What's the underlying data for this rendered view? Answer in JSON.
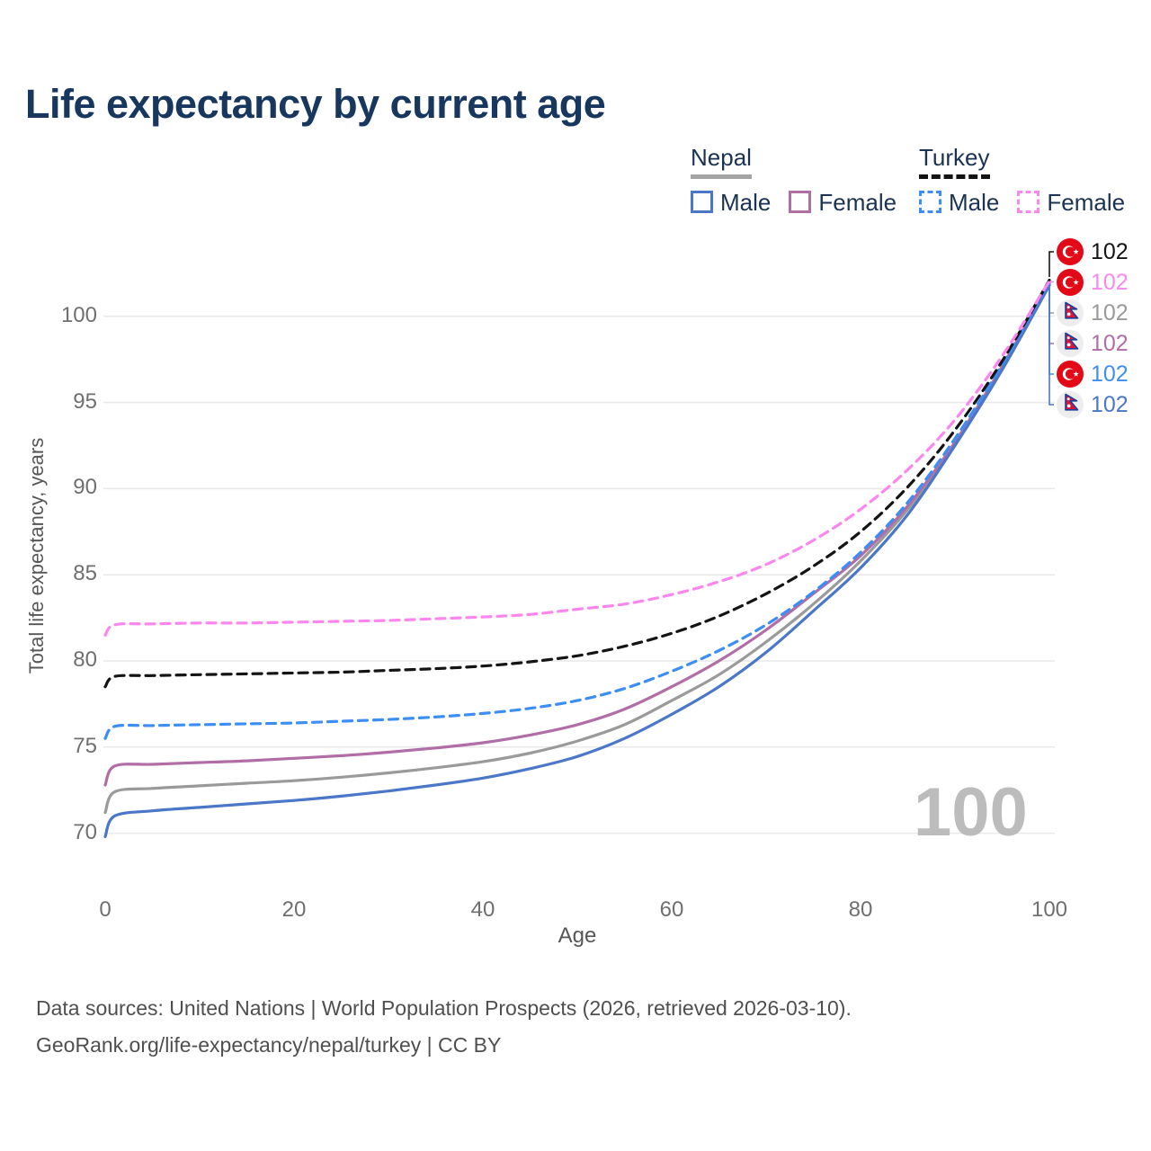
{
  "header": {
    "title": "Life expectancy by current age"
  },
  "legend": {
    "groups": [
      {
        "label": "Nepal",
        "underline_style": "solid",
        "underline_color": "#a3a3a3",
        "items": [
          {
            "label": "Male",
            "color": "#4a77c8",
            "dashed": false
          },
          {
            "label": "Female",
            "color": "#b16da6",
            "dashed": false
          }
        ]
      },
      {
        "label": "Turkey",
        "underline_style": "dashed",
        "underline_color": "#141414",
        "items": [
          {
            "label": "Male",
            "color": "#3c8ef5",
            "dashed": true
          },
          {
            "label": "Female",
            "color": "#fb87ee",
            "dashed": true
          }
        ]
      }
    ]
  },
  "chart_data": {
    "type": "line",
    "title": "Life expectancy by current age",
    "xlabel": "Age",
    "ylabel": "Total life expectancy, years",
    "x_ticks": [
      0,
      20,
      40,
      60,
      80,
      100
    ],
    "y_ticks": [
      70,
      75,
      80,
      85,
      90,
      95,
      100
    ],
    "xlim": [
      0,
      100
    ],
    "ylim": [
      69,
      103
    ],
    "grid": "horizontal",
    "legend_position": "top-right",
    "watermark": "100",
    "x": [
      0,
      1,
      5,
      10,
      15,
      20,
      25,
      30,
      35,
      40,
      45,
      50,
      55,
      60,
      65,
      70,
      75,
      80,
      85,
      90,
      95,
      100
    ],
    "series": [
      {
        "name": "Nepal — Both sexes",
        "country": "Nepal",
        "sex": "Both",
        "style": "solid",
        "color": "#9a9a9a",
        "values": [
          71.2,
          72.4,
          72.6,
          72.75,
          72.9,
          73.05,
          73.25,
          73.5,
          73.8,
          74.15,
          74.65,
          75.35,
          76.3,
          77.7,
          79.2,
          81.1,
          83.3,
          85.8,
          88.8,
          92.6,
          97.0,
          101.85
        ]
      },
      {
        "name": "Nepal — Female",
        "country": "Nepal",
        "sex": "Female",
        "style": "solid",
        "color": "#b16da6",
        "values": [
          72.8,
          73.9,
          74.0,
          74.1,
          74.2,
          74.35,
          74.5,
          74.7,
          74.95,
          75.25,
          75.7,
          76.3,
          77.2,
          78.5,
          80.0,
          81.8,
          83.9,
          86.1,
          89.0,
          92.7,
          97.1,
          101.9
        ]
      },
      {
        "name": "Nepal — Male",
        "country": "Nepal",
        "sex": "Male",
        "style": "solid",
        "color": "#4a77c8",
        "values": [
          69.8,
          71.0,
          71.3,
          71.5,
          71.7,
          71.9,
          72.15,
          72.45,
          72.8,
          73.2,
          73.75,
          74.45,
          75.5,
          76.9,
          78.5,
          80.5,
          82.9,
          85.4,
          88.5,
          92.5,
          96.9,
          101.8
        ]
      },
      {
        "name": "Turkey — Male",
        "country": "Turkey",
        "sex": "Male",
        "style": "dashed",
        "color": "#3c8ef5",
        "values": [
          75.5,
          76.2,
          76.25,
          76.3,
          76.35,
          76.4,
          76.5,
          76.6,
          76.75,
          76.95,
          77.25,
          77.7,
          78.4,
          79.4,
          80.6,
          82.1,
          84.0,
          86.3,
          89.2,
          92.9,
          97.2,
          101.95
        ]
      },
      {
        "name": "Turkey — Both sexes",
        "country": "Turkey",
        "sex": "Both",
        "style": "dashed",
        "color": "#141414",
        "values": [
          78.5,
          79.1,
          79.15,
          79.2,
          79.25,
          79.3,
          79.35,
          79.45,
          79.55,
          79.7,
          79.95,
          80.3,
          80.85,
          81.6,
          82.6,
          83.9,
          85.5,
          87.5,
          90.1,
          93.4,
          97.4,
          102.1
        ]
      },
      {
        "name": "Turkey — Female",
        "country": "Turkey",
        "sex": "Female",
        "style": "dashed",
        "color": "#fb87ee",
        "values": [
          81.5,
          82.1,
          82.15,
          82.2,
          82.2,
          82.25,
          82.3,
          82.35,
          82.45,
          82.55,
          82.7,
          83.0,
          83.3,
          83.85,
          84.6,
          85.6,
          87.0,
          88.8,
          91.1,
          94.0,
          97.7,
          102.05
        ]
      }
    ],
    "end_labels": [
      {
        "flag": "turkey",
        "series": "Turkey — Both sexes",
        "value": "102",
        "color": "#141414"
      },
      {
        "flag": "turkey",
        "series": "Turkey — Female",
        "value": "102",
        "color": "#fb87ee"
      },
      {
        "flag": "nepal",
        "series": "Nepal — Both sexes",
        "value": "102",
        "color": "#9a9a9a"
      },
      {
        "flag": "nepal",
        "series": "Nepal — Female",
        "value": "102",
        "color": "#b16da6"
      },
      {
        "flag": "turkey",
        "series": "Turkey — Male",
        "value": "102",
        "color": "#3c8ef5"
      },
      {
        "flag": "nepal",
        "series": "Nepal — Male",
        "value": "102",
        "color": "#4a77c8"
      }
    ]
  },
  "footer": {
    "line1": "Data sources: United Nations | World Population Prospects (2026, retrieved 2026-03-10).",
    "line2": "GeoRank.org/life-expectancy/nepal/turkey | CC BY"
  }
}
